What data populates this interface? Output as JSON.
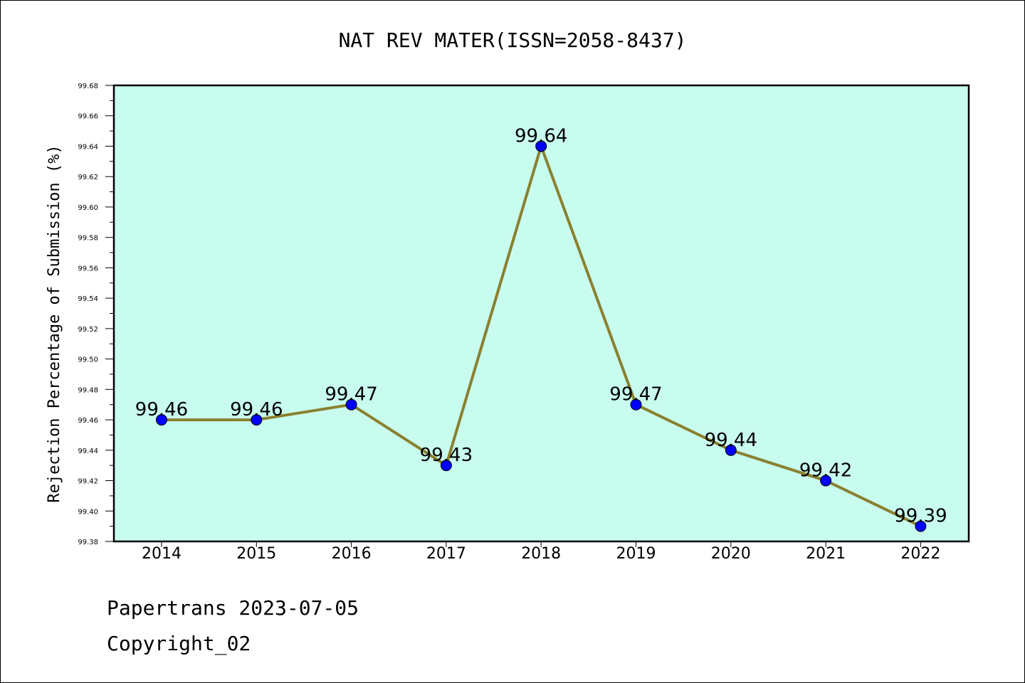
{
  "chart_data": {
    "type": "line",
    "title": "NAT REV MATER(ISSN=2058-8437)",
    "xlabel": "",
    "ylabel": "Rejection Percentage of Submission (%)",
    "categories": [
      "2014",
      "2015",
      "2016",
      "2017",
      "2018",
      "2019",
      "2020",
      "2021",
      "2022"
    ],
    "series": [
      {
        "values": [
          99.46,
          99.46,
          99.47,
          99.43,
          99.64,
          99.47,
          99.44,
          99.42,
          99.39
        ],
        "labels": [
          "99.46",
          "99.46",
          "99.47",
          "99.43",
          "99.64",
          "99.47",
          "99.44",
          "99.42",
          "99.39"
        ]
      }
    ],
    "ylim": [
      99.38,
      99.68
    ],
    "yticks": [
      "99.38",
      "99.40",
      "99.42",
      "99.44",
      "99.46",
      "99.48",
      "99.50",
      "99.52",
      "99.54",
      "99.56",
      "99.58",
      "99.60",
      "99.62",
      "99.64",
      "99.66",
      "99.68"
    ],
    "grid": false,
    "colors": {
      "plot_background": "#c8fcee",
      "line": "#8a8030",
      "marker": "#0000ff"
    }
  },
  "footer": {
    "line1": "Papertrans 2023-07-05",
    "line2": "Copyright_02"
  }
}
